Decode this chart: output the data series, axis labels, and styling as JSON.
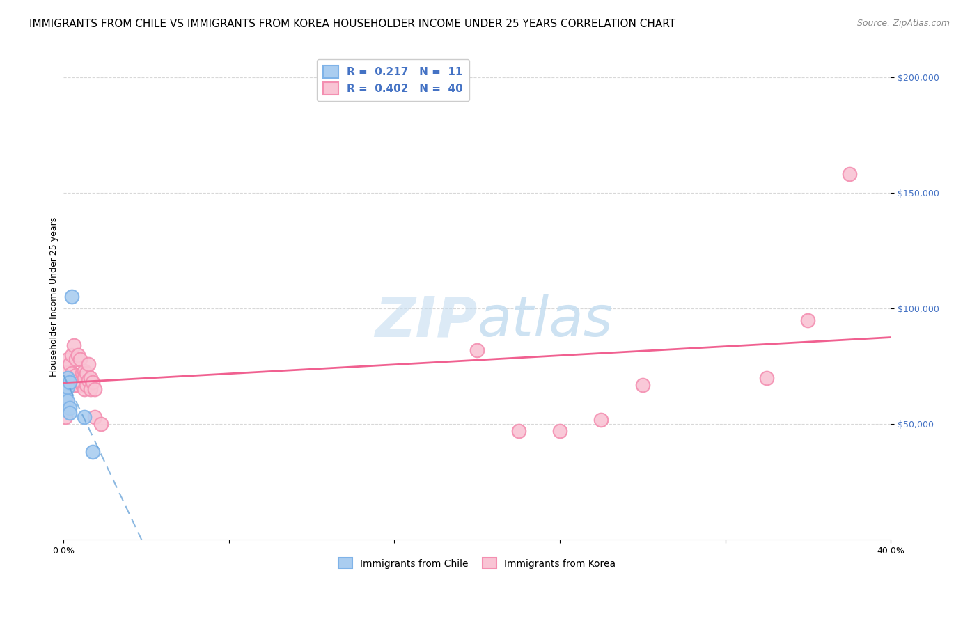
{
  "title": "IMMIGRANTS FROM CHILE VS IMMIGRANTS FROM KOREA HOUSEHOLDER INCOME UNDER 25 YEARS CORRELATION CHART",
  "source": "Source: ZipAtlas.com",
  "ylabel": "Householder Income Under 25 years",
  "xmin": 0.0,
  "xmax": 0.4,
  "ymin": 0,
  "ymax": 210000,
  "yticks": [
    50000,
    100000,
    150000,
    200000
  ],
  "ytick_labels": [
    "$50,000",
    "$100,000",
    "$150,000",
    "$200,000"
  ],
  "watermark_zip": "ZIP",
  "watermark_atlas": "atlas",
  "chile_color": "#7fb3e8",
  "chile_color_fill": "#aacdf0",
  "korea_color": "#f48fb1",
  "korea_color_fill": "#f9c4d4",
  "chile_line_color": "#5b9bd5",
  "korea_line_color": "#f06090",
  "r_chile": 0.217,
  "n_chile": 11,
  "r_korea": 0.402,
  "n_korea": 40,
  "legend_chile": "Immigrants from Chile",
  "legend_korea": "Immigrants from Korea",
  "chile_x": [
    0.001,
    0.001,
    0.002,
    0.002,
    0.002,
    0.003,
    0.003,
    0.003,
    0.004,
    0.01,
    0.014
  ],
  "chile_y": [
    65000,
    62000,
    70000,
    66000,
    60000,
    68000,
    57000,
    55000,
    105000,
    53000,
    38000
  ],
  "korea_x": [
    0.001,
    0.001,
    0.002,
    0.002,
    0.002,
    0.003,
    0.003,
    0.004,
    0.004,
    0.005,
    0.005,
    0.006,
    0.006,
    0.007,
    0.007,
    0.008,
    0.008,
    0.009,
    0.009,
    0.01,
    0.01,
    0.01,
    0.011,
    0.011,
    0.012,
    0.012,
    0.013,
    0.013,
    0.014,
    0.015,
    0.015,
    0.018,
    0.2,
    0.22,
    0.24,
    0.26,
    0.28,
    0.34,
    0.36,
    0.38
  ],
  "korea_y": [
    60000,
    53000,
    74000,
    66000,
    78000,
    76000,
    68000,
    80000,
    72000,
    84000,
    67000,
    78000,
    71000,
    80000,
    67000,
    78000,
    68000,
    72000,
    67000,
    73000,
    70000,
    65000,
    72000,
    67000,
    76000,
    69000,
    70000,
    65000,
    68000,
    65000,
    53000,
    50000,
    82000,
    47000,
    47000,
    52000,
    67000,
    70000,
    95000,
    158000
  ],
  "grid_color": "#d8d8d8",
  "title_fontsize": 11,
  "source_fontsize": 9,
  "axis_label_fontsize": 9,
  "tick_fontsize": 9,
  "legend_fontsize": 10
}
